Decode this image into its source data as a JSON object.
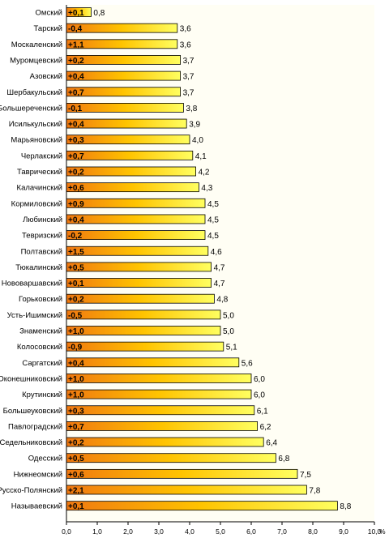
{
  "chart_data": {
    "type": "bar",
    "orientation": "horizontal",
    "categories": [
      "Омский",
      "Тарский",
      "Москаленский",
      "Муромцевский",
      "Азовский",
      "Шербакульский",
      "Большереченский",
      "Исилькульский",
      "Марьяновский",
      "Черлакский",
      "Таврический",
      "Калачинский",
      "Кормиловский",
      "Любинский",
      "Тевризский",
      "Полтавский",
      "Тюкалинский",
      "Нововаршавский",
      "Горьковский",
      "Усть-Ишимский",
      "Знаменский",
      "Колосовский",
      "Саргатский",
      "Оконешниковский",
      "Крутинский",
      "Большеуковский",
      "Павлоградский",
      "Седельниковский",
      "Одесский",
      "Нижнеомский",
      "Русско-Полянский",
      "Называевский"
    ],
    "values": [
      0.8,
      3.6,
      3.6,
      3.7,
      3.7,
      3.7,
      3.8,
      3.9,
      4.0,
      4.1,
      4.2,
      4.3,
      4.5,
      4.5,
      4.5,
      4.6,
      4.7,
      4.7,
      4.8,
      5.0,
      5.0,
      5.1,
      5.6,
      6.0,
      6.0,
      6.1,
      6.2,
      6.4,
      6.8,
      7.5,
      7.8,
      8.8
    ],
    "value_labels": [
      "0,8",
      "3,6",
      "3,6",
      "3,7",
      "3,7",
      "3,7",
      "3,8",
      "3,9",
      "4,0",
      "4,1",
      "4,2",
      "4,3",
      "4,5",
      "4,5",
      "4,5",
      "4,6",
      "4,7",
      "4,7",
      "4,8",
      "5,0",
      "5,0",
      "5,1",
      "5,6",
      "6,0",
      "6,0",
      "6,1",
      "6,2",
      "6,4",
      "6,8",
      "7,5",
      "7,8",
      "8,8"
    ],
    "change_labels": [
      "+0,1",
      "-0,4",
      "+1,1",
      "+0,2",
      "+0,4",
      "+0,7",
      "-0,1",
      "+0,4",
      "+0,3",
      "+0,7",
      "+0,2",
      "+0,6",
      "+0,9",
      "+0,4",
      "-0,2",
      "+1,5",
      "+0,5",
      "+0,1",
      "+0,2",
      "-0,5",
      "+1,0",
      "-0,9",
      "+0,4",
      "+1,0",
      "+1,0",
      "+0,3",
      "+0,7",
      "+0,2",
      "+0,5",
      "+0,6",
      "+2,1",
      "+0,1"
    ],
    "xlim": [
      0,
      10
    ],
    "x_ticks": [
      "0,0",
      "1,0",
      "2,0",
      "3,0",
      "4,0",
      "5,0",
      "6,0",
      "7,0",
      "8,0",
      "9,0",
      "10,0"
    ],
    "x_unit": "%",
    "grid": false,
    "colors": {
      "bar_start": "#f07810",
      "bar_mid": "#ffc400",
      "bar_end": "#ffff60",
      "bar_edge": "#000000",
      "plot_background": "#fffef4",
      "label_color": "#000000"
    }
  }
}
